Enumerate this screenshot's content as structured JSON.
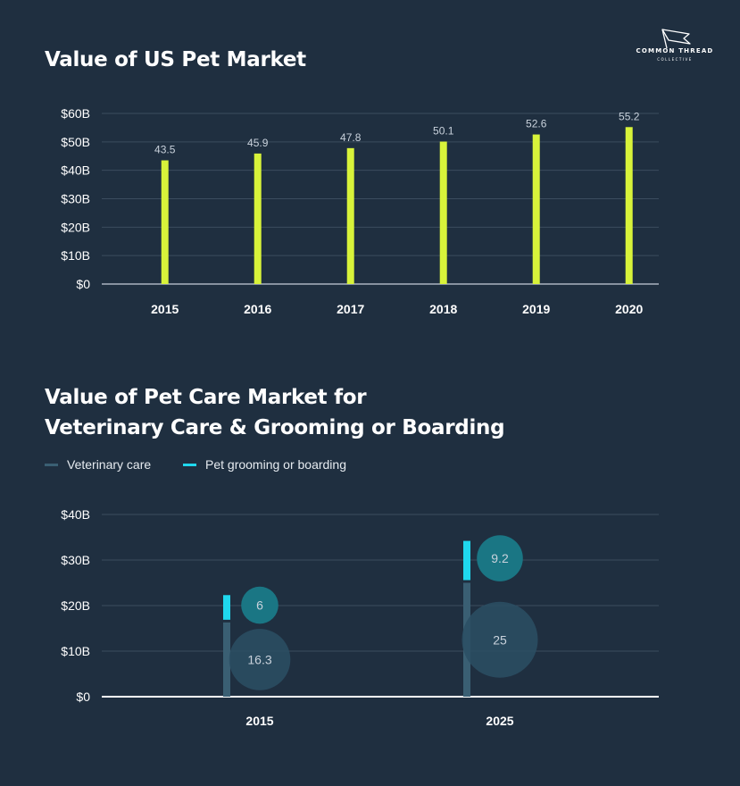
{
  "brand": {
    "name": "COMMON THREAD",
    "tagline": "COLLECTIVE"
  },
  "colors": {
    "background": "#1f2f40",
    "bar": "#d8f33a",
    "veterinary": "#3a5f73",
    "grooming": "#1fd8ee",
    "bubble_grooming": "#1a7684",
    "bubble_veterinary": "#2c4f64",
    "grid": "#3b4c5e"
  },
  "chart_data": [
    {
      "type": "bar",
      "title": "Value of US Pet Market",
      "categories": [
        "2015",
        "2016",
        "2017",
        "2018",
        "2019",
        "2020"
      ],
      "values": [
        43.5,
        45.9,
        47.8,
        50.1,
        52.6,
        55.2
      ],
      "ylim": [
        0,
        60
      ],
      "yticks": [
        "$0",
        "$10B",
        "$20B",
        "$30B",
        "$40B",
        "$50B",
        "$60B"
      ],
      "xlabel": "",
      "ylabel": "",
      "grid": true
    },
    {
      "type": "bar",
      "title_lines": [
        "Value of Pet Care Market for",
        "Veterinary Care & Grooming or Boarding"
      ],
      "categories": [
        "2015",
        "2025"
      ],
      "series": [
        {
          "name": "Veterinary care",
          "values": [
            16.3,
            25
          ]
        },
        {
          "name": "Pet grooming or boarding",
          "values": [
            6,
            9.2
          ]
        }
      ],
      "stacked": true,
      "ylim": [
        0,
        40
      ],
      "yticks": [
        "$0",
        "$10B",
        "$20B",
        "$30B",
        "$40B"
      ],
      "legend": "top-left",
      "grid": true
    }
  ]
}
